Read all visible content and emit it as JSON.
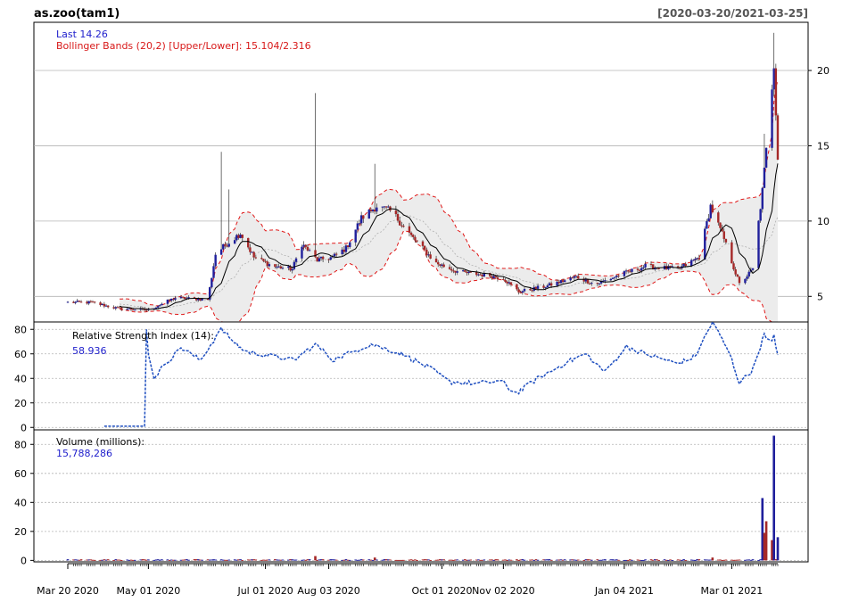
{
  "header": {
    "title": "as.zoo(tam1)",
    "date_range": "[2020-03-20/2021-03-25]"
  },
  "colors": {
    "up": "#1f1f9c",
    "down": "#a52828",
    "bands": "#e01818",
    "band_fill": "#ececec",
    "rsi": "#1f4fc0",
    "blue_text": "#1f1fcc",
    "red_text": "#d81818",
    "grid": "#b4b4b4"
  },
  "chart_data": [
    {
      "type": "candlestick",
      "panel": "price",
      "legend": {
        "last_label": "Last 14.26",
        "bands_label": "Bollinger Bands (20,2) [Upper/Lower]: 15.104/2.316"
      },
      "ylim": [
        3.3,
        23.2
      ],
      "yticks": [
        5,
        10,
        15,
        20
      ],
      "grid": true,
      "keypoints": [
        {
          "x": "2020-03-20",
          "y": 4.6
        },
        {
          "x": "2020-04-01",
          "y": 4.6
        },
        {
          "x": "2020-04-15",
          "y": 4.2
        },
        {
          "x": "2020-05-01",
          "y": 4.1
        },
        {
          "x": "2020-05-15",
          "y": 4.9
        },
        {
          "x": "2020-06-01",
          "y": 4.8
        },
        {
          "x": "2020-06-05",
          "y": 7.8
        },
        {
          "x": "2020-06-10",
          "y": 8.4
        },
        {
          "x": "2020-06-18",
          "y": 9.2
        },
        {
          "x": "2020-06-25",
          "y": 7.6
        },
        {
          "x": "2020-07-05",
          "y": 7.0
        },
        {
          "x": "2020-07-15",
          "y": 6.8
        },
        {
          "x": "2020-07-20",
          "y": 8.5
        },
        {
          "x": "2020-07-28",
          "y": 7.4
        },
        {
          "x": "2020-08-05",
          "y": 7.6
        },
        {
          "x": "2020-08-12",
          "y": 8.2
        },
        {
          "x": "2020-08-20",
          "y": 10.2
        },
        {
          "x": "2020-08-28",
          "y": 11.0
        },
        {
          "x": "2020-09-05",
          "y": 10.6
        },
        {
          "x": "2020-09-15",
          "y": 9.0
        },
        {
          "x": "2020-09-28",
          "y": 7.2
        },
        {
          "x": "2020-10-10",
          "y": 6.6
        },
        {
          "x": "2020-10-25",
          "y": 6.4
        },
        {
          "x": "2020-11-02",
          "y": 6.2
        },
        {
          "x": "2020-11-10",
          "y": 5.3
        },
        {
          "x": "2020-11-25",
          "y": 5.7
        },
        {
          "x": "2020-12-10",
          "y": 6.3
        },
        {
          "x": "2020-12-20",
          "y": 5.8
        },
        {
          "x": "2021-01-01",
          "y": 6.4
        },
        {
          "x": "2021-01-15",
          "y": 7.0
        },
        {
          "x": "2021-02-01",
          "y": 6.8
        },
        {
          "x": "2021-02-12",
          "y": 7.6
        },
        {
          "x": "2021-02-18",
          "y": 11.0
        },
        {
          "x": "2021-02-25",
          "y": 8.8
        },
        {
          "x": "2021-03-05",
          "y": 5.8
        },
        {
          "x": "2021-03-12",
          "y": 6.8
        },
        {
          "x": "2021-03-17",
          "y": 12.0
        },
        {
          "x": "2021-03-20",
          "y": 16.0
        },
        {
          "x": "2021-03-23",
          "y": 20.5
        },
        {
          "x": "2021-03-25",
          "y": 14.26
        }
      ],
      "spikes": [
        {
          "x": "2020-06-08",
          "high": 14.6
        },
        {
          "x": "2020-06-12",
          "high": 12.1
        },
        {
          "x": "2020-07-27",
          "high": 18.5
        },
        {
          "x": "2020-08-27",
          "high": 13.8
        },
        {
          "x": "2021-01-03",
          "high": 10.7
        },
        {
          "x": "2021-03-18",
          "high": 15.8
        },
        {
          "x": "2021-03-23",
          "high": 22.5
        }
      ]
    },
    {
      "type": "line",
      "panel": "rsi",
      "legend": {
        "label": "Relative Strength Index (14):",
        "value": "58.936"
      },
      "ylim": [
        -2,
        86
      ],
      "yticks": [
        0,
        20,
        40,
        60,
        80
      ],
      "grid": true,
      "keypoints": [
        {
          "x": "2020-04-08",
          "y": 1
        },
        {
          "x": "2020-04-29",
          "y": 1
        },
        {
          "x": "2020-04-30",
          "y": 80
        },
        {
          "x": "2020-05-02",
          "y": 37
        },
        {
          "x": "2020-05-10",
          "y": 52
        },
        {
          "x": "2020-05-18",
          "y": 65
        },
        {
          "x": "2020-05-28",
          "y": 55
        },
        {
          "x": "2020-06-08",
          "y": 80
        },
        {
          "x": "2020-06-20",
          "y": 62
        },
        {
          "x": "2020-07-05",
          "y": 58
        },
        {
          "x": "2020-07-16",
          "y": 55
        },
        {
          "x": "2020-07-27",
          "y": 68
        },
        {
          "x": "2020-08-05",
          "y": 55
        },
        {
          "x": "2020-08-25",
          "y": 68
        },
        {
          "x": "2020-09-10",
          "y": 60
        },
        {
          "x": "2020-09-25",
          "y": 48
        },
        {
          "x": "2020-10-05",
          "y": 37
        },
        {
          "x": "2020-10-20",
          "y": 36
        },
        {
          "x": "2020-11-01",
          "y": 38
        },
        {
          "x": "2020-11-08",
          "y": 27
        },
        {
          "x": "2020-11-20",
          "y": 40
        },
        {
          "x": "2020-12-05",
          "y": 53
        },
        {
          "x": "2020-12-15",
          "y": 60
        },
        {
          "x": "2020-12-25",
          "y": 45
        },
        {
          "x": "2021-01-05",
          "y": 66
        },
        {
          "x": "2021-01-15",
          "y": 60
        },
        {
          "x": "2021-02-01",
          "y": 52
        },
        {
          "x": "2021-02-10",
          "y": 58
        },
        {
          "x": "2021-02-19",
          "y": 86
        },
        {
          "x": "2021-02-28",
          "y": 60
        },
        {
          "x": "2021-03-05",
          "y": 36
        },
        {
          "x": "2021-03-12",
          "y": 47
        },
        {
          "x": "2021-03-18",
          "y": 76
        },
        {
          "x": "2021-03-21",
          "y": 62
        },
        {
          "x": "2021-03-23",
          "y": 76
        },
        {
          "x": "2021-03-25",
          "y": 58.936
        }
      ]
    },
    {
      "type": "bar",
      "panel": "volume",
      "legend": {
        "label": "Volume (millions):",
        "value": "15,788,286"
      },
      "ylim": [
        -1,
        90
      ],
      "yticks": [
        0,
        20,
        40,
        60,
        80
      ],
      "grid": true,
      "spikes": [
        {
          "x": "2020-07-27",
          "value": 3
        },
        {
          "x": "2020-08-27",
          "value": 2
        },
        {
          "x": "2021-01-03",
          "value": 7
        },
        {
          "x": "2021-02-19",
          "value": 2
        },
        {
          "x": "2021-03-17",
          "value": 43,
          "dir": "up"
        },
        {
          "x": "2021-03-18",
          "value": 19,
          "dir": "down"
        },
        {
          "x": "2021-03-19",
          "value": 27,
          "dir": "down"
        },
        {
          "x": "2021-03-22",
          "value": 14,
          "dir": "down"
        },
        {
          "x": "2021-03-23",
          "value": 86,
          "dir": "up"
        },
        {
          "x": "2021-03-25",
          "value": 16,
          "dir": "up"
        }
      ]
    }
  ],
  "x_axis": {
    "range": [
      "2020-03-20",
      "2021-03-25"
    ],
    "ticks": [
      {
        "date": "2020-03-20",
        "label": "Mar 20 2020"
      },
      {
        "date": "2020-05-01",
        "label": "May 01 2020"
      },
      {
        "date": "2020-07-01",
        "label": "Jul 01 2020"
      },
      {
        "date": "2020-08-03",
        "label": "Aug 03 2020"
      },
      {
        "date": "2020-10-01",
        "label": "Oct 01 2020"
      },
      {
        "date": "2020-11-02",
        "label": "Nov 02 2020"
      },
      {
        "date": "2021-01-04",
        "label": "Jan 04 2021"
      },
      {
        "date": "2021-03-01",
        "label": "Mar 01 2021"
      }
    ]
  }
}
